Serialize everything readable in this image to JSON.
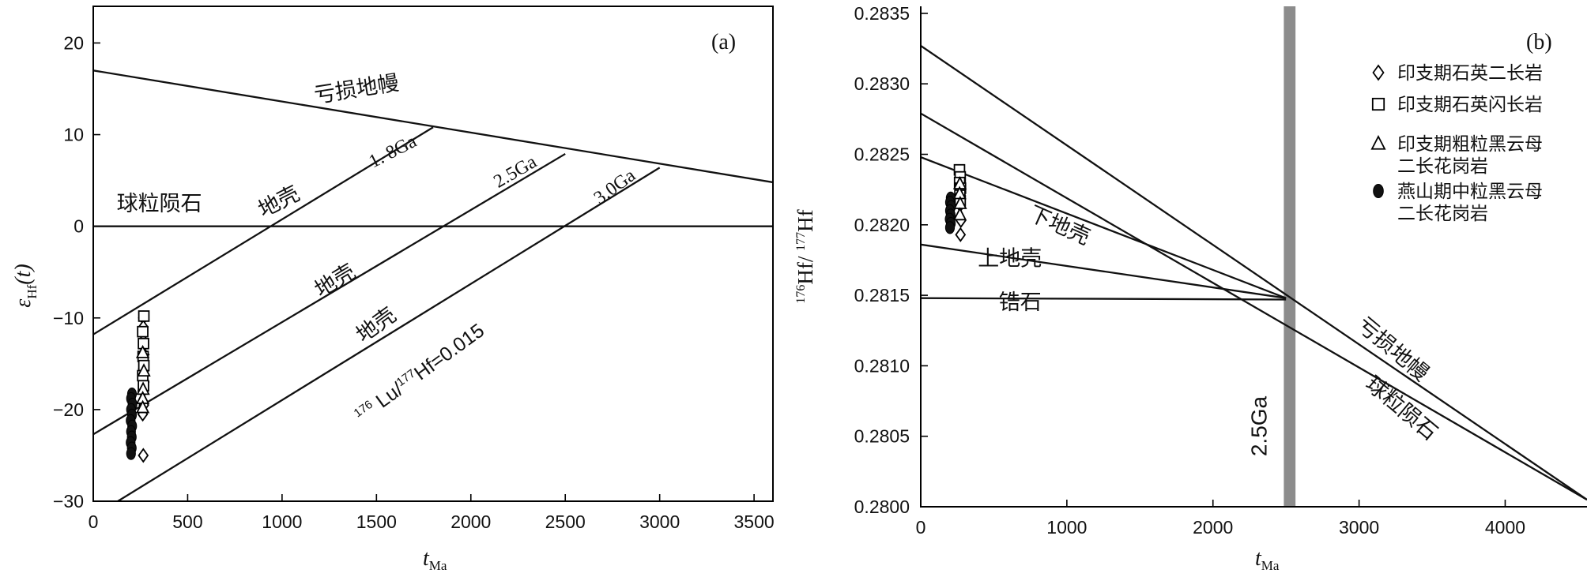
{
  "chart_data": [
    {
      "type": "line",
      "panel_label": "(a)",
      "xlabel": "t",
      "xlabel_sub": "Ma",
      "ylabel_symbol": "ε",
      "ylabel_sub": "Hf",
      "ylabel_suffix": "(t)",
      "xlim": [
        0,
        3600
      ],
      "ylim": [
        -30,
        24
      ],
      "xticks": [
        0,
        500,
        1000,
        1500,
        2000,
        2500,
        3000,
        3500
      ],
      "yticks": [
        -30,
        -20,
        -10,
        0,
        10,
        20
      ],
      "reference_lines": [
        {
          "name": "亏损地幔",
          "x": [
            0,
            3600
          ],
          "y": [
            17.0,
            4.8
          ]
        },
        {
          "name": "球粒陨石",
          "x": [
            0,
            3600
          ],
          "y": [
            0,
            0
          ]
        },
        {
          "name": "1.8Ga",
          "x": [
            0,
            1800
          ],
          "y": [
            -11.8,
            10.8
          ]
        },
        {
          "name": "2.5Ga",
          "x": [
            0,
            2500
          ],
          "y": [
            -22.7,
            7.9
          ]
        },
        {
          "name": "3.0Ga",
          "x": [
            130,
            3000
          ],
          "y": [
            -30,
            6.4
          ]
        }
      ],
      "annotations": [
        {
          "text": "亏损地幔",
          "x": 1400,
          "y": 14.2,
          "rotate": -9
        },
        {
          "text": "1. 8Ga",
          "x": 1600,
          "y": 7.6,
          "rotate": -27
        },
        {
          "text": "2.5Ga",
          "x": 2250,
          "y": 5.4,
          "rotate": -30
        },
        {
          "text": "3.0Ga",
          "x": 2780,
          "y": 3.8,
          "rotate": -36
        },
        {
          "text": "球粒陨石",
          "x": 350,
          "y": 1.7,
          "rotate": 0
        },
        {
          "text": "地壳",
          "x": 1000,
          "y": 2.0,
          "rotate": -27
        },
        {
          "text": "地壳",
          "x": 1300,
          "y": -6.6,
          "rotate": -31
        },
        {
          "text": "地壳",
          "x": 1520,
          "y": -11.4,
          "rotate": -36
        }
      ],
      "ratio_label": {
        "pre": "176",
        "a": " Lu/",
        "mid": "177",
        "b": "Hf=0.015",
        "x": 1750,
        "y": -16.6,
        "rotate": -36
      },
      "series": [
        {
          "name": "印支期石英二长岩",
          "marker": "diamond",
          "points": [
            [
              265,
              -10
            ],
            [
              265,
              -11
            ],
            [
              265,
              -12.5
            ],
            [
              270,
              -14
            ],
            [
              265,
              -15.5
            ],
            [
              270,
              -17
            ],
            [
              262,
              -18
            ],
            [
              268,
              -19.5
            ],
            [
              262,
              -20.5
            ],
            [
              265,
              -25
            ]
          ]
        },
        {
          "name": "印支期石英闪长岩",
          "marker": "square",
          "points": [
            [
              268,
              -9.8
            ],
            [
              262,
              -11.5
            ],
            [
              266,
              -12.8
            ],
            [
              264,
              -14.2
            ],
            [
              268,
              -15.2
            ],
            [
              262,
              -16.3
            ],
            [
              266,
              -17.4
            ]
          ]
        },
        {
          "name": "印支期粗粒黑云母二长花岗岩",
          "marker": "triangle",
          "points": [
            [
              262,
              -13.8
            ],
            [
              268,
              -15.8
            ],
            [
              264,
              -17.8
            ],
            [
              262,
              -18.8
            ],
            [
              262,
              -19.8
            ]
          ]
        },
        {
          "name": "燕山期中粒黑云母二长花岗岩",
          "marker": "circle",
          "points": [
            [
              205,
              -18.3
            ],
            [
              200,
              -18.8
            ],
            [
              208,
              -19.4
            ],
            [
              200,
              -20
            ],
            [
              205,
              -20.6
            ],
            [
              198,
              -21.2
            ],
            [
              206,
              -21.8
            ],
            [
              200,
              -22.4
            ],
            [
              204,
              -23
            ],
            [
              198,
              -23.6
            ],
            [
              204,
              -24.2
            ],
            [
              200,
              -24.8
            ]
          ]
        }
      ]
    },
    {
      "type": "line",
      "panel_label": "(b)",
      "xlabel": "t",
      "xlabel_sub": "Ma",
      "ylabel_pre": "176",
      "ylabel_a": "Hf/ ",
      "ylabel_mid": "177",
      "ylabel_b": "Hf",
      "xlim": [
        0,
        4560
      ],
      "ylim": [
        0.28,
        0.28355
      ],
      "xticks": [
        0,
        1000,
        2000,
        3000,
        4000
      ],
      "yticks": [
        "0.2800",
        "0.2805",
        "0.2810",
        "0.2815",
        "0.2820",
        "0.2825",
        "0.2830",
        "0.2835"
      ],
      "band": {
        "text": "2.5Ga",
        "x0": 2485,
        "x1": 2565
      },
      "reference_lines": [
        {
          "name": "亏损地幔",
          "x": [
            0,
            4560
          ],
          "y": [
            0.28327,
            0.28005
          ]
        },
        {
          "name": "球粒陨石",
          "x": [
            0,
            4560
          ],
          "y": [
            0.28279,
            0.28005
          ]
        },
        {
          "name": "下地壳",
          "x": [
            0,
            2500
          ],
          "y": [
            0.28248,
            0.28148
          ]
        },
        {
          "name": "上地壳",
          "x": [
            0,
            2500
          ],
          "y": [
            0.28186,
            0.28148
          ]
        },
        {
          "name": "锆石",
          "x": [
            0,
            2500
          ],
          "y": [
            0.28148,
            0.28147
          ]
        }
      ],
      "annotations": [
        {
          "text": "下地壳",
          "x": 930,
          "y": 0.28195,
          "rotate": 24
        },
        {
          "text": "上地壳",
          "x": 610,
          "y": 0.28171,
          "rotate": 0
        },
        {
          "text": "锆石",
          "x": 680,
          "y": 0.2814,
          "rotate": 0
        },
        {
          "text": "亏损地幔",
          "x": 3200,
          "y": 0.28108,
          "rotate": 40
        },
        {
          "text": "球粒陨石",
          "x": 3260,
          "y": 0.28066,
          "rotate": 40
        }
      ],
      "series": [
        {
          "name": "印支期石英二长岩",
          "marker": "diamond",
          "points": [
            [
              270,
              0.28237
            ],
            [
              272,
              0.28228
            ],
            [
              268,
              0.28222
            ],
            [
              270,
              0.28214
            ],
            [
              275,
              0.28203
            ],
            [
              272,
              0.28193
            ]
          ]
        },
        {
          "name": "印支期石英闪长岩",
          "marker": "square",
          "points": [
            [
              265,
              0.28239
            ],
            [
              270,
              0.28234
            ],
            [
              266,
              0.2823
            ],
            [
              272,
              0.28226
            ],
            [
              268,
              0.28221
            ],
            [
              270,
              0.28217
            ]
          ]
        },
        {
          "name": "印支期粗粒黑云母二长花岗岩",
          "marker": "triangle",
          "points": [
            [
              268,
              0.28229
            ],
            [
              266,
              0.28222
            ],
            [
              270,
              0.28215
            ],
            [
              268,
              0.28207
            ]
          ]
        },
        {
          "name": "燕山期中粒黑云母二长花岗岩",
          "marker": "circle",
          "points": [
            [
              205,
              0.28219
            ],
            [
              200,
              0.28216
            ],
            [
              208,
              0.28213
            ],
            [
              200,
              0.2821
            ],
            [
              205,
              0.28207
            ],
            [
              198,
              0.28204
            ],
            [
              206,
              0.28201
            ],
            [
              200,
              0.28198
            ]
          ]
        }
      ]
    }
  ],
  "legend": {
    "items": [
      {
        "marker": "diamond",
        "lines": [
          "印支期石英二长岩"
        ]
      },
      {
        "marker": "square",
        "lines": [
          "印支期石英闪长岩"
        ]
      },
      {
        "marker": "triangle",
        "lines": [
          "印支期粗粒黑云母",
          "二长花岗岩"
        ]
      },
      {
        "marker": "circle",
        "lines": [
          "燕山期中粒黑云母",
          "二长花岗岩"
        ]
      }
    ]
  }
}
